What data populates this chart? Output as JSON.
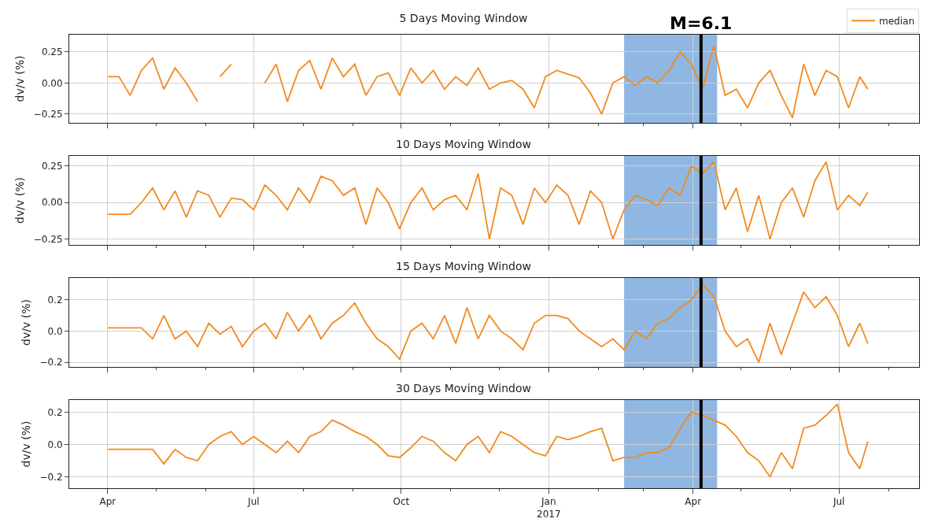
{
  "chart_data": [
    {
      "type": "line",
      "title": "5 Days Moving Window",
      "ylabel": "dv/v (%)",
      "legend": "top right",
      "grid": true,
      "tick_labels": "y",
      "marker": "none",
      "line_style": "solid",
      "xlim": [
        "2016-03-08",
        "2017-08-20"
      ],
      "ylim": [
        -0.32,
        0.387
      ],
      "yticks": [
        {
          "value": -0.25,
          "label": "−0.25"
        },
        {
          "value": 0,
          "label": "0.00"
        },
        {
          "value": 0.25,
          "label": "0.25"
        }
      ],
      "bands": [
        {
          "axis": "x",
          "from": "2017-02-17",
          "to": "2017-04-16",
          "color": "#6a9fd8"
        }
      ],
      "ref_lines": [
        {
          "axis": "x",
          "value": "2017-04-06",
          "label": "M=6.1",
          "color": "#000000",
          "line_style": "solid"
        }
      ],
      "x": [
        "2016-04-01",
        "2016-04-08",
        "2016-04-15",
        "2016-04-22",
        "2016-04-29",
        "2016-05-06",
        "2016-05-13",
        "2016-05-20",
        "2016-05-27",
        "2016-06-03",
        "2016-06-10",
        "2016-06-17",
        "2016-06-24",
        "2016-07-01",
        "2016-07-08",
        "2016-07-15",
        "2016-07-22",
        "2016-07-29",
        "2016-08-05",
        "2016-08-12",
        "2016-08-19",
        "2016-08-26",
        "2016-09-02",
        "2016-09-09",
        "2016-09-16",
        "2016-09-23",
        "2016-09-30",
        "2016-10-07",
        "2016-10-14",
        "2016-10-21",
        "2016-10-28",
        "2016-11-04",
        "2016-11-11",
        "2016-11-18",
        "2016-11-25",
        "2016-12-02",
        "2016-12-09",
        "2016-12-16",
        "2016-12-23",
        "2016-12-30",
        "2017-01-06",
        "2017-01-13",
        "2017-01-20",
        "2017-01-27",
        "2017-02-03",
        "2017-02-10",
        "2017-02-17",
        "2017-02-24",
        "2017-03-03",
        "2017-03-10",
        "2017-03-17",
        "2017-03-24",
        "2017-03-31",
        "2017-04-07",
        "2017-04-14",
        "2017-04-21",
        "2017-04-28",
        "2017-05-05",
        "2017-05-12",
        "2017-05-19",
        "2017-05-26",
        "2017-06-02",
        "2017-06-09",
        "2017-06-16",
        "2017-06-23",
        "2017-06-30",
        "2017-07-07",
        "2017-07-14",
        "2017-07-19"
      ],
      "series": [
        {
          "name": "median",
          "color": "#f28a1f",
          "values": [
            0.05,
            0.05,
            -0.1,
            0.1,
            0.2,
            -0.05,
            0.12,
            0.0,
            -0.15,
            null,
            0.05,
            0.15,
            null,
            null,
            0.0,
            0.15,
            -0.15,
            0.1,
            0.18,
            -0.05,
            0.2,
            0.05,
            0.15,
            -0.1,
            0.05,
            0.08,
            -0.1,
            0.12,
            0.0,
            0.1,
            -0.05,
            0.05,
            -0.02,
            0.12,
            -0.05,
            0.0,
            0.02,
            -0.05,
            -0.2,
            0.05,
            0.1,
            0.07,
            0.04,
            -0.08,
            -0.25,
            0.0,
            0.05,
            -0.02,
            0.05,
            0.0,
            0.1,
            0.25,
            0.15,
            -0.05,
            0.3,
            -0.1,
            -0.05,
            -0.2,
            0.0,
            0.1,
            -0.1,
            -0.28,
            0.15,
            -0.1,
            0.1,
            0.05,
            -0.2,
            0.05,
            -0.05
          ]
        }
      ]
    },
    {
      "type": "line",
      "title": "10 Days Moving Window",
      "ylabel": "dv/v (%)",
      "grid": true,
      "tick_labels": "y",
      "marker": "none",
      "line_style": "solid",
      "xlim": [
        "2016-03-08",
        "2017-08-20"
      ],
      "ylim": [
        -0.29,
        0.32
      ],
      "yticks": [
        {
          "value": -0.25,
          "label": "−0.25"
        },
        {
          "value": 0,
          "label": "0.00"
        },
        {
          "value": 0.25,
          "label": "0.25"
        }
      ],
      "bands": [
        {
          "axis": "x",
          "from": "2017-02-17",
          "to": "2017-04-16",
          "color": "#6a9fd8"
        }
      ],
      "ref_lines": [
        {
          "axis": "x",
          "value": "2017-04-06",
          "color": "#000000",
          "line_style": "solid"
        }
      ],
      "x": [
        "2016-04-01",
        "2016-04-08",
        "2016-04-15",
        "2016-04-22",
        "2016-04-29",
        "2016-05-06",
        "2016-05-13",
        "2016-05-20",
        "2016-05-27",
        "2016-06-03",
        "2016-06-10",
        "2016-06-17",
        "2016-06-24",
        "2016-07-01",
        "2016-07-08",
        "2016-07-15",
        "2016-07-22",
        "2016-07-29",
        "2016-08-05",
        "2016-08-12",
        "2016-08-19",
        "2016-08-26",
        "2016-09-02",
        "2016-09-09",
        "2016-09-16",
        "2016-09-23",
        "2016-09-30",
        "2016-10-07",
        "2016-10-14",
        "2016-10-21",
        "2016-10-28",
        "2016-11-04",
        "2016-11-11",
        "2016-11-18",
        "2016-11-25",
        "2016-12-02",
        "2016-12-09",
        "2016-12-16",
        "2016-12-23",
        "2016-12-30",
        "2017-01-06",
        "2017-01-13",
        "2017-01-20",
        "2017-01-27",
        "2017-02-03",
        "2017-02-10",
        "2017-02-17",
        "2017-02-24",
        "2017-03-03",
        "2017-03-10",
        "2017-03-17",
        "2017-03-24",
        "2017-03-31",
        "2017-04-07",
        "2017-04-14",
        "2017-04-21",
        "2017-04-28",
        "2017-05-05",
        "2017-05-12",
        "2017-05-19",
        "2017-05-26",
        "2017-06-02",
        "2017-06-09",
        "2017-06-16",
        "2017-06-23",
        "2017-06-30",
        "2017-07-07",
        "2017-07-14",
        "2017-07-19"
      ],
      "series": [
        {
          "color": "#f28a1f",
          "values": [
            -0.08,
            -0.08,
            -0.08,
            0.0,
            0.1,
            -0.05,
            0.08,
            -0.1,
            0.08,
            0.05,
            -0.1,
            0.03,
            0.02,
            -0.05,
            0.12,
            0.05,
            -0.05,
            0.1,
            0.0,
            0.18,
            0.15,
            0.05,
            0.1,
            -0.15,
            0.1,
            0.0,
            -0.18,
            0.0,
            0.1,
            -0.05,
            0.02,
            0.05,
            -0.05,
            0.2,
            -0.25,
            0.1,
            0.05,
            -0.15,
            0.1,
            0.0,
            0.12,
            0.05,
            -0.15,
            0.08,
            0.0,
            -0.25,
            -0.05,
            0.05,
            0.02,
            -0.02,
            0.1,
            0.05,
            0.25,
            0.2,
            0.28,
            -0.05,
            0.1,
            -0.2,
            0.05,
            -0.25,
            0.0,
            0.1,
            -0.1,
            0.15,
            0.28,
            -0.05,
            0.05,
            -0.02,
            0.07
          ]
        }
      ]
    },
    {
      "type": "line",
      "title": "15 Days Moving Window",
      "ylabel": "dv/v (%)",
      "grid": true,
      "tick_labels": "y",
      "marker": "none",
      "line_style": "solid",
      "xlim": [
        "2016-03-08",
        "2017-08-20"
      ],
      "ylim": [
        -0.23,
        0.34
      ],
      "yticks": [
        {
          "value": -0.2,
          "label": "−0.2"
        },
        {
          "value": 0,
          "label": "0.0"
        },
        {
          "value": 0.2,
          "label": "0.2"
        }
      ],
      "bands": [
        {
          "axis": "x",
          "from": "2017-02-17",
          "to": "2017-04-16",
          "color": "#6a9fd8"
        }
      ],
      "ref_lines": [
        {
          "axis": "x",
          "value": "2017-04-06",
          "color": "#000000",
          "line_style": "solid"
        }
      ],
      "x": [
        "2016-04-01",
        "2016-04-08",
        "2016-04-15",
        "2016-04-22",
        "2016-04-29",
        "2016-05-06",
        "2016-05-13",
        "2016-05-20",
        "2016-05-27",
        "2016-06-03",
        "2016-06-10",
        "2016-06-17",
        "2016-06-24",
        "2016-07-01",
        "2016-07-08",
        "2016-07-15",
        "2016-07-22",
        "2016-07-29",
        "2016-08-05",
        "2016-08-12",
        "2016-08-19",
        "2016-08-26",
        "2016-09-02",
        "2016-09-09",
        "2016-09-16",
        "2016-09-23",
        "2016-09-30",
        "2016-10-07",
        "2016-10-14",
        "2016-10-21",
        "2016-10-28",
        "2016-11-04",
        "2016-11-11",
        "2016-11-18",
        "2016-11-25",
        "2016-12-02",
        "2016-12-09",
        "2016-12-16",
        "2016-12-23",
        "2016-12-30",
        "2017-01-06",
        "2017-01-13",
        "2017-01-20",
        "2017-01-27",
        "2017-02-03",
        "2017-02-10",
        "2017-02-17",
        "2017-02-24",
        "2017-03-03",
        "2017-03-10",
        "2017-03-17",
        "2017-03-24",
        "2017-03-31",
        "2017-04-07",
        "2017-04-14",
        "2017-04-21",
        "2017-04-28",
        "2017-05-05",
        "2017-05-12",
        "2017-05-19",
        "2017-05-26",
        "2017-06-02",
        "2017-06-09",
        "2017-06-16",
        "2017-06-23",
        "2017-06-30",
        "2017-07-07",
        "2017-07-14",
        "2017-07-19"
      ],
      "series": [
        {
          "color": "#f28a1f",
          "values": [
            0.02,
            0.02,
            0.02,
            0.02,
            -0.05,
            0.1,
            -0.05,
            0.0,
            -0.1,
            0.05,
            -0.02,
            0.03,
            -0.1,
            0.0,
            0.05,
            -0.05,
            0.12,
            0.0,
            0.1,
            -0.05,
            0.05,
            0.1,
            0.18,
            0.05,
            -0.05,
            -0.1,
            -0.18,
            0.0,
            0.05,
            -0.05,
            0.1,
            -0.08,
            0.15,
            -0.05,
            0.1,
            0.0,
            -0.05,
            -0.12,
            0.05,
            0.1,
            0.1,
            0.08,
            0.0,
            -0.05,
            -0.1,
            -0.05,
            -0.12,
            0.0,
            -0.05,
            0.05,
            0.08,
            0.15,
            0.2,
            0.3,
            0.22,
            0.0,
            -0.1,
            -0.05,
            -0.2,
            0.05,
            -0.15,
            0.05,
            0.25,
            0.15,
            0.22,
            0.1,
            -0.1,
            0.05,
            -0.08
          ]
        }
      ]
    },
    {
      "type": "line",
      "title": "30 Days Moving Window",
      "ylabel": "dv/v (%)",
      "grid": true,
      "marker": "none",
      "line_style": "solid",
      "xlim": [
        "2016-03-08",
        "2017-08-20"
      ],
      "xticks": [
        {
          "value": "2016-04-01",
          "label": "Apr"
        },
        {
          "value": "2016-05-01",
          "label": null
        },
        {
          "value": "2016-06-01",
          "label": null
        },
        {
          "value": "2016-07-01",
          "label": "Jul"
        },
        {
          "value": "2016-08-01",
          "label": null
        },
        {
          "value": "2016-09-01",
          "label": null
        },
        {
          "value": "2016-10-01",
          "label": "Oct"
        },
        {
          "value": "2016-11-01",
          "label": null
        },
        {
          "value": "2016-12-01",
          "label": null
        },
        {
          "value": "2017-01-01",
          "label": "Jan\n2017"
        },
        {
          "value": "2017-02-01",
          "label": null
        },
        {
          "value": "2017-03-01",
          "label": null
        },
        {
          "value": "2017-04-01",
          "label": "Apr"
        },
        {
          "value": "2017-05-01",
          "label": null
        },
        {
          "value": "2017-06-01",
          "label": null
        },
        {
          "value": "2017-07-01",
          "label": "Jul"
        },
        {
          "value": "2017-08-01",
          "label": null
        }
      ],
      "ylim": [
        -0.27,
        0.275
      ],
      "yticks": [
        {
          "value": -0.2,
          "label": "−0.2"
        },
        {
          "value": 0,
          "label": "0.0"
        },
        {
          "value": 0.2,
          "label": "0.2"
        }
      ],
      "bands": [
        {
          "axis": "x",
          "from": "2017-02-17",
          "to": "2017-04-16",
          "color": "#6a9fd8"
        }
      ],
      "ref_lines": [
        {
          "axis": "x",
          "value": "2017-04-06",
          "color": "#000000",
          "line_style": "solid"
        }
      ],
      "x": [
        "2016-04-01",
        "2016-04-08",
        "2016-04-15",
        "2016-04-22",
        "2016-04-29",
        "2016-05-06",
        "2016-05-13",
        "2016-05-20",
        "2016-05-27",
        "2016-06-03",
        "2016-06-10",
        "2016-06-17",
        "2016-06-24",
        "2016-07-01",
        "2016-07-08",
        "2016-07-15",
        "2016-07-22",
        "2016-07-29",
        "2016-08-05",
        "2016-08-12",
        "2016-08-19",
        "2016-08-26",
        "2016-09-02",
        "2016-09-09",
        "2016-09-16",
        "2016-09-23",
        "2016-09-30",
        "2016-10-07",
        "2016-10-14",
        "2016-10-21",
        "2016-10-28",
        "2016-11-04",
        "2016-11-11",
        "2016-11-18",
        "2016-11-25",
        "2016-12-02",
        "2016-12-09",
        "2016-12-16",
        "2016-12-23",
        "2016-12-30",
        "2017-01-06",
        "2017-01-13",
        "2017-01-20",
        "2017-01-27",
        "2017-02-03",
        "2017-02-10",
        "2017-02-17",
        "2017-02-24",
        "2017-03-03",
        "2017-03-10",
        "2017-03-17",
        "2017-03-24",
        "2017-03-31",
        "2017-04-07",
        "2017-04-14",
        "2017-04-21",
        "2017-04-28",
        "2017-05-05",
        "2017-05-12",
        "2017-05-19",
        "2017-05-26",
        "2017-06-02",
        "2017-06-09",
        "2017-06-16",
        "2017-06-23",
        "2017-06-30",
        "2017-07-07",
        "2017-07-14",
        "2017-07-19"
      ],
      "series": [
        {
          "color": "#f28a1f",
          "values": [
            -0.03,
            -0.03,
            -0.03,
            -0.03,
            -0.03,
            -0.12,
            -0.03,
            -0.08,
            -0.1,
            0.0,
            0.05,
            0.08,
            0.0,
            0.05,
            0.0,
            -0.05,
            0.02,
            -0.05,
            0.05,
            0.08,
            0.15,
            0.12,
            0.08,
            0.05,
            0.0,
            -0.07,
            -0.08,
            -0.02,
            0.05,
            0.02,
            -0.05,
            -0.1,
            0.0,
            0.05,
            -0.05,
            0.08,
            0.05,
            0.0,
            -0.05,
            -0.07,
            0.05,
            0.03,
            0.05,
            0.08,
            0.1,
            -0.1,
            -0.08,
            -0.08,
            -0.05,
            -0.05,
            -0.02,
            0.1,
            0.2,
            0.18,
            0.15,
            0.12,
            0.05,
            -0.05,
            -0.1,
            -0.2,
            -0.05,
            -0.15,
            0.1,
            0.12,
            0.18,
            0.25,
            -0.05,
            -0.15,
            0.02
          ]
        }
      ]
    }
  ]
}
